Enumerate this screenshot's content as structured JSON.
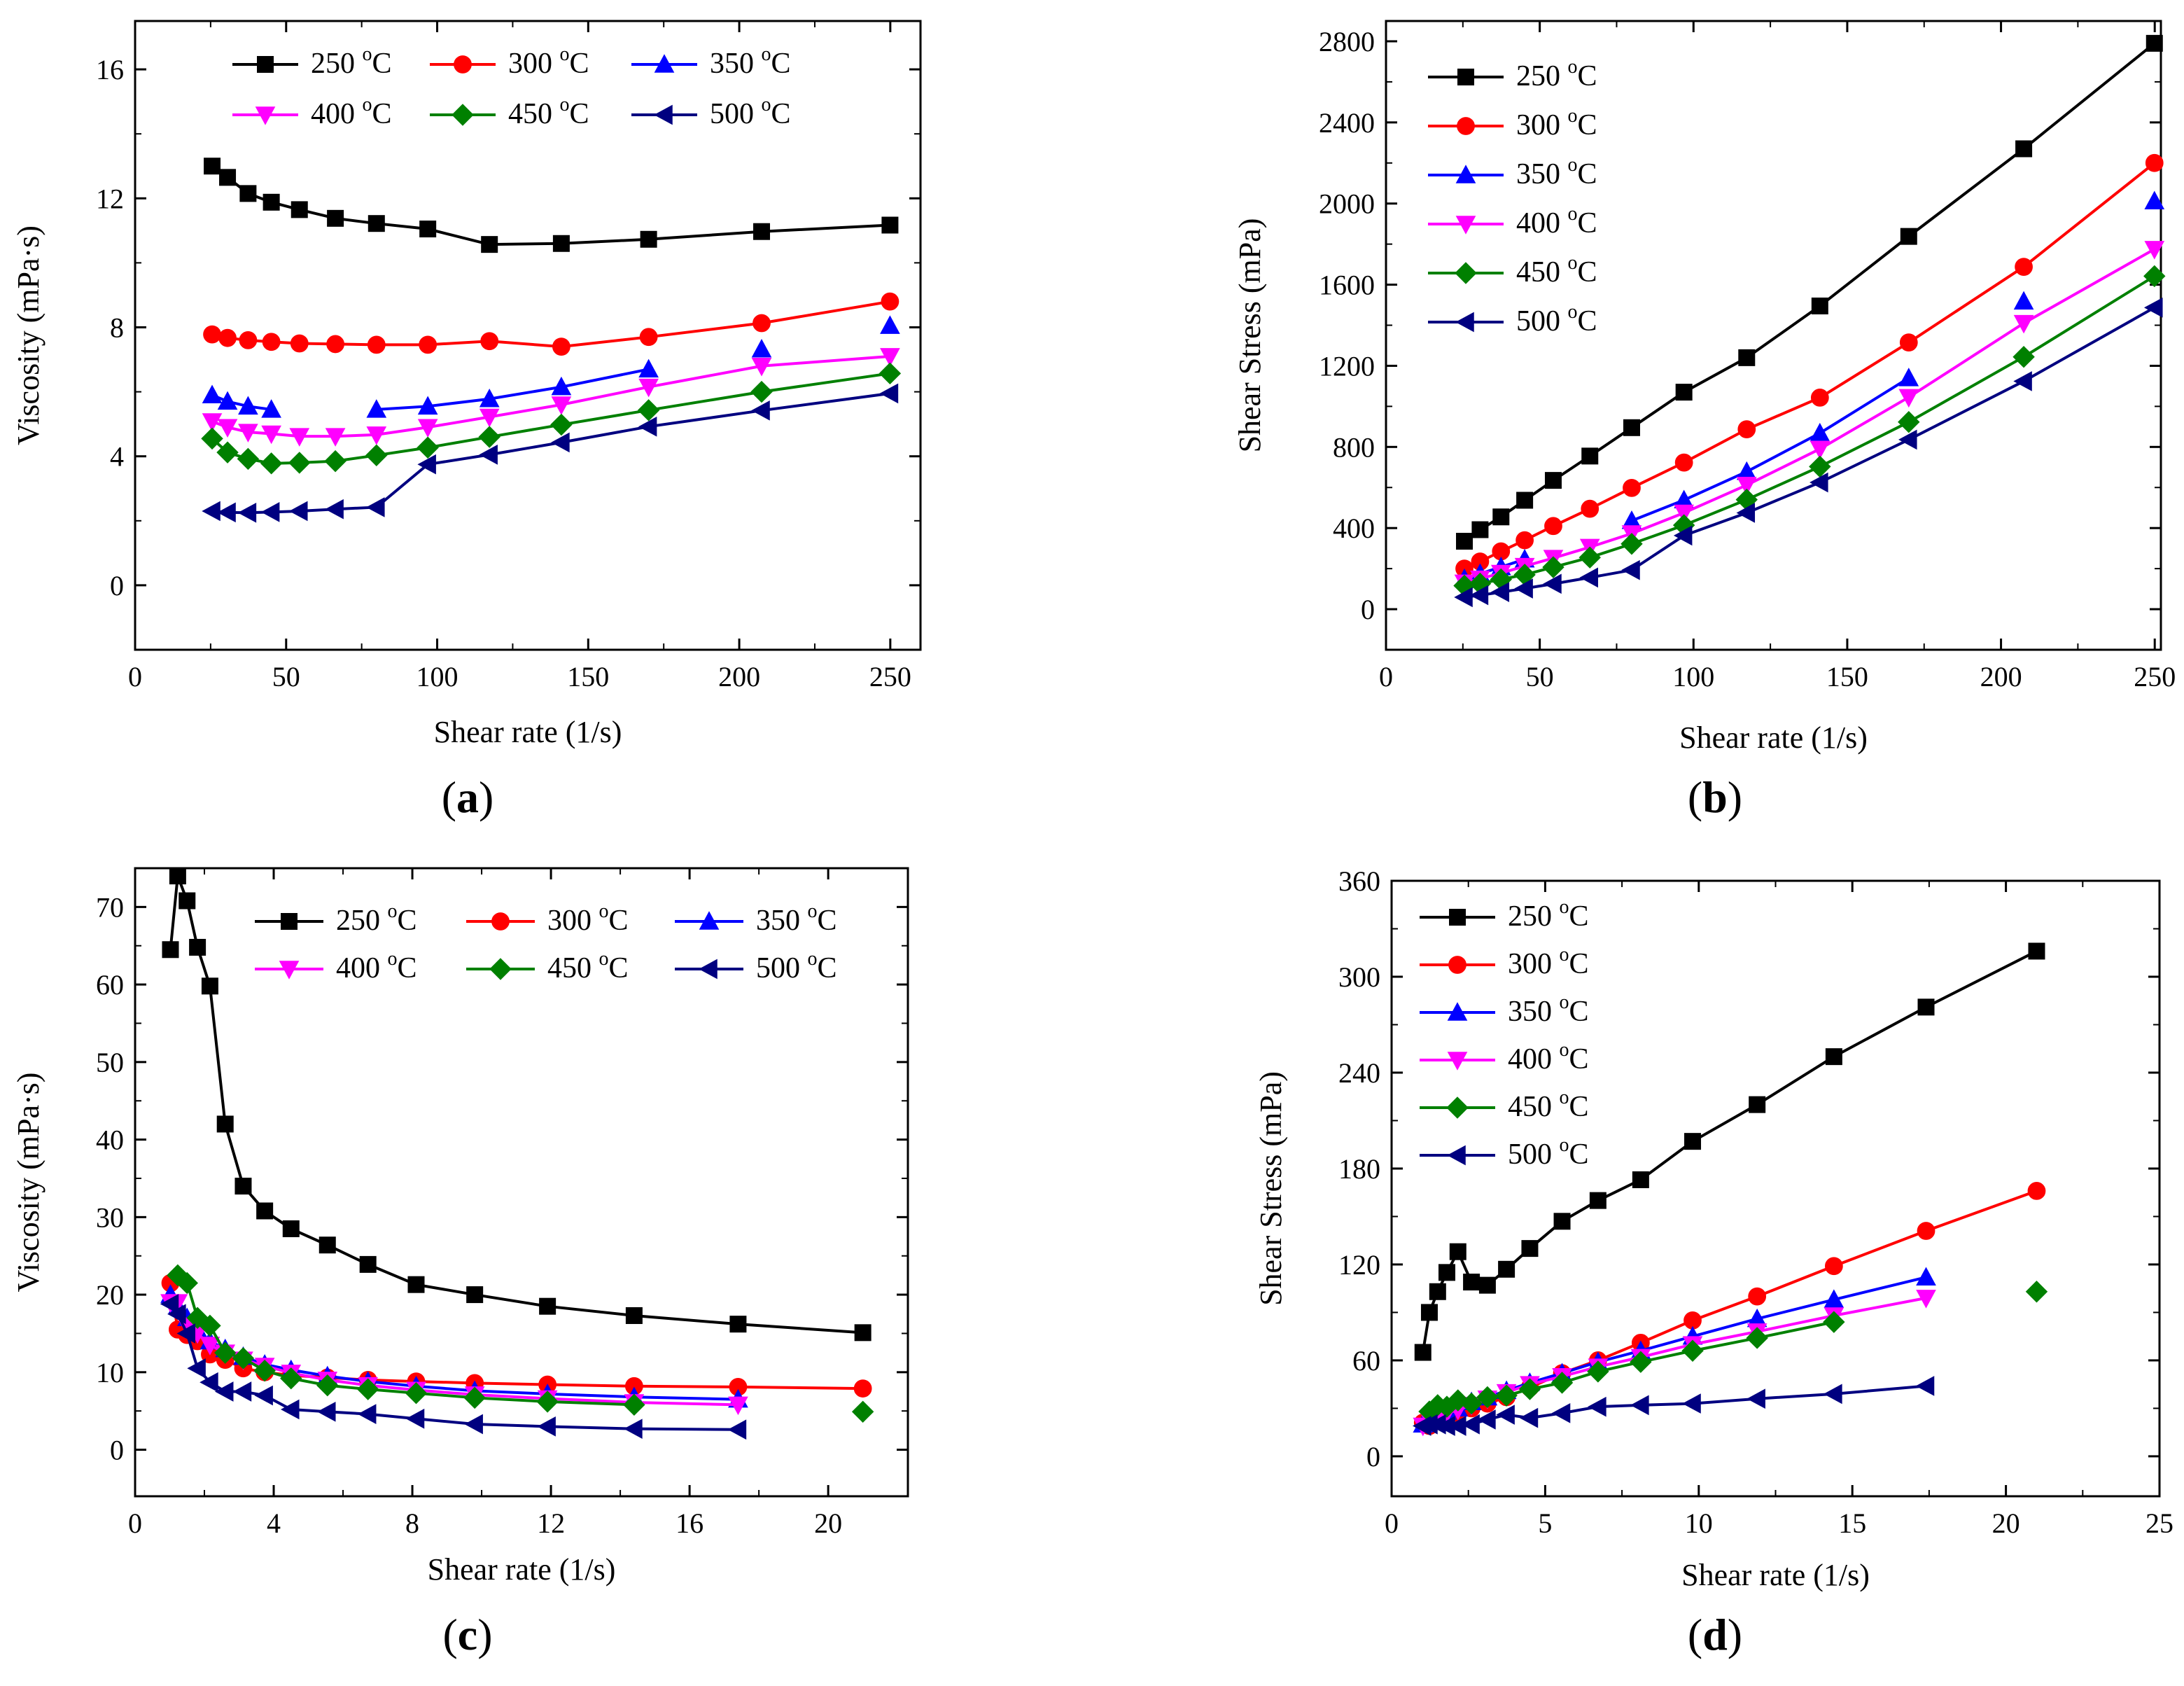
{
  "chart_data": [
    {
      "type": "line",
      "panel": "(a)",
      "panel_letter": "a",
      "xlabel": "Shear rate (1/s)",
      "ylabel": "Viscosity (mPa·s)",
      "xlim": [
        0,
        260
      ],
      "ylim": [
        -2,
        17.5
      ],
      "xticks": [
        0,
        50,
        100,
        150,
        200,
        250
      ],
      "yticks": [
        0,
        4,
        8,
        12,
        16
      ],
      "legend": {
        "columns": 3,
        "placement": "top"
      },
      "series": [
        {
          "name": "250 °C",
          "color": "#000000",
          "marker": "square",
          "x": [
            25.5,
            30.6,
            37.4,
            45.1,
            54.4,
            66.3,
            79.9,
            96.9,
            117.3,
            141.1,
            170.0,
            207.4,
            249.9
          ],
          "y": [
            13.0,
            12.65,
            12.15,
            11.88,
            11.65,
            11.38,
            11.22,
            11.05,
            10.57,
            10.6,
            10.73,
            10.97,
            11.17
          ]
        },
        {
          "name": "300 °C",
          "color": "#ff0000",
          "marker": "circle",
          "x": [
            25.5,
            30.6,
            37.4,
            45.1,
            54.4,
            66.3,
            79.9,
            96.9,
            117.3,
            141.1,
            170.0,
            207.4,
            249.9
          ],
          "y": [
            7.78,
            7.67,
            7.6,
            7.55,
            7.5,
            7.48,
            7.46,
            7.46,
            7.57,
            7.4,
            7.7,
            8.13,
            8.8
          ]
        },
        {
          "name": "350 °C",
          "color": "#0000ff",
          "marker": "triangle-up",
          "x": [
            25.5,
            30.6,
            37.4,
            45.1,
            79.9,
            96.9,
            117.3,
            141.1,
            170.0,
            207.4,
            249.9
          ],
          "y": [
            5.9,
            5.7,
            5.55,
            5.45,
            5.45,
            5.55,
            5.78,
            6.15,
            6.7,
            7.32,
            8.05
          ]
        },
        {
          "name": "400 °C",
          "color": "#ff00ff",
          "marker": "triangle-down",
          "x": [
            25.5,
            30.6,
            37.4,
            45.1,
            54.4,
            66.3,
            79.9,
            96.9,
            117.3,
            141.1,
            170.0,
            207.4,
            249.9
          ],
          "y": [
            5.08,
            4.9,
            4.75,
            4.7,
            4.62,
            4.62,
            4.67,
            4.9,
            5.22,
            5.6,
            6.15,
            6.8,
            7.1
          ]
        },
        {
          "name": "450 °C",
          "color": "#008000",
          "marker": "diamond",
          "x": [
            25.5,
            30.6,
            37.4,
            45.1,
            54.4,
            66.3,
            79.9,
            96.9,
            117.3,
            141.1,
            170.0,
            207.4,
            249.9
          ],
          "y": [
            4.55,
            4.12,
            3.92,
            3.78,
            3.8,
            3.85,
            4.03,
            4.27,
            4.6,
            4.98,
            5.43,
            6.0,
            6.57
          ]
        },
        {
          "name": "500 °C",
          "color": "#000080",
          "marker": "triangle-left",
          "x": [
            25.5,
            30.6,
            37.4,
            45.1,
            54.4,
            66.3,
            79.9,
            96.9,
            117.3,
            141.1,
            170.0,
            207.4,
            249.9
          ],
          "y": [
            2.3,
            2.26,
            2.25,
            2.27,
            2.3,
            2.36,
            2.42,
            3.75,
            4.05,
            4.43,
            4.92,
            5.42,
            5.95
          ]
        }
      ]
    },
    {
      "type": "line",
      "panel": "(b)",
      "panel_letter": "b",
      "xlabel": "Shear rate (1/s)",
      "ylabel": "Shear Stress (mPa)",
      "xlim": [
        0,
        252
      ],
      "ylim": [
        -200,
        2900
      ],
      "xticks": [
        0,
        50,
        100,
        150,
        200,
        250
      ],
      "yticks": [
        0,
        400,
        800,
        1200,
        1600,
        2000,
        2400,
        2800
      ],
      "legend": {
        "columns": 1,
        "placement": "top-left"
      },
      "series": [
        {
          "name": "250 °C",
          "color": "#000000",
          "marker": "square",
          "x": [
            25.5,
            30.6,
            37.4,
            45.1,
            54.4,
            66.3,
            79.9,
            96.9,
            117.3,
            141.1,
            170.0,
            207.4,
            249.9
          ],
          "y": [
            335,
            392,
            455,
            537,
            635,
            755,
            895,
            1070,
            1240,
            1495,
            1838,
            2270,
            2790
          ]
        },
        {
          "name": "300 °C",
          "color": "#ff0000",
          "marker": "circle",
          "x": [
            25.5,
            30.6,
            37.4,
            45.1,
            54.4,
            66.3,
            79.9,
            96.9,
            117.3,
            141.1,
            170.0,
            207.4,
            249.9
          ],
          "y": [
            200,
            235,
            285,
            340,
            410,
            495,
            598,
            723,
            887,
            1043,
            1315,
            1688,
            2200
          ]
        },
        {
          "name": "350 °C",
          "color": "#0000ff",
          "marker": "triangle-up",
          "x": [
            25.5,
            30.6,
            37.4,
            45.1,
            79.9,
            96.9,
            117.3,
            141.1,
            170.0,
            207.4,
            249.9
          ],
          "y": [
            150,
            175,
            208,
            246,
            436,
            538,
            678,
            868,
            1140,
            1518,
            2012
          ]
        },
        {
          "name": "400 °C",
          "color": "#ff00ff",
          "marker": "triangle-down",
          "x": [
            25.5,
            30.6,
            37.4,
            45.1,
            54.4,
            66.3,
            79.9,
            96.9,
            117.3,
            141.1,
            170.0,
            207.4,
            249.9
          ],
          "y": [
            130,
            150,
            178,
            212,
            252,
            306,
            373,
            475,
            612,
            790,
            1045,
            1410,
            1775
          ]
        },
        {
          "name": "450 °C",
          "color": "#008000",
          "marker": "diamond",
          "x": [
            25.5,
            30.6,
            37.4,
            45.1,
            54.4,
            66.3,
            79.9,
            96.9,
            117.3,
            141.1,
            170.0,
            207.4,
            249.9
          ],
          "y": [
            116,
            126,
            147,
            170,
            207,
            255,
            322,
            414,
            540,
            703,
            923,
            1244,
            1642
          ]
        },
        {
          "name": "500 °C",
          "color": "#000080",
          "marker": "triangle-left",
          "x": [
            25.5,
            30.6,
            37.4,
            45.1,
            54.4,
            66.3,
            79.9,
            96.9,
            117.3,
            141.1,
            170.0,
            207.4,
            249.9
          ],
          "y": [
            59,
            69,
            84,
            102,
            125,
            156,
            193,
            363,
            475,
            625,
            836,
            1124,
            1487
          ]
        }
      ]
    },
    {
      "type": "line",
      "panel": "(c)",
      "panel_letter": "c",
      "xlabel": "Shear rate (1/s)",
      "ylabel": "Viscosity (mPa·s)",
      "xlim": [
        0,
        22.3
      ],
      "ylim": [
        -6,
        75
      ],
      "xticks": [
        0,
        4,
        8,
        12,
        16,
        20
      ],
      "yticks": [
        0,
        10,
        20,
        30,
        40,
        50,
        60,
        70
      ],
      "legend": {
        "columns": 3,
        "placement": "top-right"
      },
      "series": [
        {
          "name": "250 °C",
          "color": "#000000",
          "marker": "square",
          "x": [
            1.02,
            1.23,
            1.5,
            1.8,
            2.16,
            2.6,
            3.12,
            3.74,
            4.5,
            5.55,
            6.72,
            8.11,
            9.8,
            11.9,
            14.4,
            17.4,
            21.0
          ],
          "y": [
            64.5,
            74.0,
            70.8,
            64.8,
            59.8,
            42.0,
            34.0,
            30.8,
            28.5,
            26.4,
            23.9,
            21.3,
            20.0,
            18.5,
            17.3,
            16.2,
            15.1
          ]
        },
        {
          "name": "300 °C",
          "color": "#ff0000",
          "marker": "circle",
          "x": [
            1.02,
            1.23,
            1.5,
            1.8,
            2.16,
            2.6,
            3.12,
            3.74,
            4.5,
            5.55,
            6.72,
            8.11,
            9.8,
            11.9,
            14.4,
            17.4,
            21.0
          ],
          "y": [
            21.5,
            15.5,
            14.8,
            14.0,
            12.3,
            11.6,
            10.5,
            10.0,
            9.6,
            9.3,
            9.0,
            8.8,
            8.6,
            8.4,
            8.2,
            8.1,
            7.9
          ]
        },
        {
          "name": "350 °C",
          "color": "#0000ff",
          "marker": "triangle-up",
          "x": [
            1.02,
            1.23,
            1.5,
            1.8,
            2.16,
            2.6,
            3.12,
            3.74,
            4.5,
            5.55,
            6.72,
            8.11,
            9.8,
            11.9,
            14.4,
            17.4
          ],
          "y": [
            20.0,
            18.5,
            17.0,
            15.5,
            14.0,
            13.0,
            12.0,
            11.0,
            10.3,
            9.5,
            8.8,
            8.2,
            7.6,
            7.2,
            6.8,
            6.5
          ]
        },
        {
          "name": "400 °C",
          "color": "#ff00ff",
          "marker": "triangle-down",
          "x": [
            1.02,
            1.23,
            1.5,
            1.8,
            2.16,
            2.6,
            3.12,
            3.74,
            4.5,
            5.55,
            6.72,
            8.11,
            9.8,
            11.9,
            14.4,
            17.4
          ],
          "y": [
            19.0,
            19.0,
            16.0,
            15.0,
            13.5,
            12.5,
            11.6,
            10.8,
            9.9,
            9.0,
            8.3,
            7.7,
            7.1,
            6.6,
            6.1,
            5.8
          ]
        },
        {
          "name": "450 °C",
          "color": "#008000",
          "marker": "diamond",
          "x": [
            1.23,
            1.5,
            1.8,
            2.16,
            2.6,
            3.12,
            3.74,
            4.5,
            5.55,
            6.72,
            8.11,
            9.8,
            11.9,
            14.4,
            21.0
          ],
          "y": [
            22.5,
            21.5,
            17.0,
            16.0,
            12.5,
            11.8,
            10.2,
            9.2,
            8.3,
            7.8,
            7.3,
            6.7,
            6.2,
            5.8,
            4.9
          ]
        },
        {
          "name": "500 °C",
          "color": "#000080",
          "marker": "triangle-left",
          "x": [
            1.02,
            1.23,
            1.5,
            1.8,
            2.16,
            2.6,
            3.12,
            3.74,
            4.5,
            5.55,
            6.72,
            8.11,
            9.8,
            11.9,
            14.4,
            17.4
          ],
          "y": [
            18.8,
            17.5,
            15.0,
            10.5,
            8.7,
            7.5,
            7.5,
            7.0,
            5.2,
            4.9,
            4.6,
            4.0,
            3.3,
            3.0,
            2.7,
            2.6
          ]
        }
      ]
    },
    {
      "type": "line",
      "panel": "(d)",
      "panel_letter": "d",
      "xlabel": "Shear rate (1/s)",
      "ylabel": "Shear Stress (mPa)",
      "xlim": [
        0,
        25
      ],
      "ylim": [
        -25,
        360
      ],
      "xticks": [
        0,
        5,
        10,
        15,
        20,
        25
      ],
      "yticks": [
        0,
        60,
        120,
        180,
        240,
        300,
        360
      ],
      "legend": {
        "columns": 1,
        "placement": "top-left"
      },
      "series": [
        {
          "name": "250 °C",
          "color": "#000000",
          "marker": "square",
          "x": [
            1.02,
            1.23,
            1.5,
            1.8,
            2.16,
            2.6,
            3.12,
            3.74,
            4.5,
            5.55,
            6.72,
            8.11,
            9.8,
            11.9,
            14.4,
            17.4,
            21.0
          ],
          "y": [
            65,
            90,
            103,
            115,
            128,
            109,
            107,
            117,
            130,
            147,
            160,
            173,
            197,
            220,
            250,
            281,
            316
          ]
        },
        {
          "name": "300 °C",
          "color": "#ff0000",
          "marker": "circle",
          "x": [
            1.02,
            1.23,
            1.5,
            1.8,
            2.16,
            2.6,
            3.12,
            3.74,
            4.5,
            5.55,
            6.72,
            8.11,
            9.8,
            11.9,
            14.4,
            17.4,
            21.0
          ],
          "y": [
            21,
            19,
            22,
            25,
            27,
            30,
            33,
            37,
            43,
            52,
            60,
            71,
            85,
            100,
            119,
            141,
            166
          ]
        },
        {
          "name": "350 °C",
          "color": "#0000ff",
          "marker": "triangle-up",
          "x": [
            1.02,
            1.23,
            1.5,
            1.8,
            2.16,
            2.6,
            3.12,
            3.74,
            4.5,
            5.55,
            6.72,
            8.11,
            9.8,
            11.9,
            14.4,
            17.4
          ],
          "y": [
            20,
            23,
            25,
            28,
            30,
            34,
            37,
            41,
            46,
            52,
            59,
            66,
            75,
            86,
            98,
            112
          ]
        },
        {
          "name": "400 °C",
          "color": "#ff00ff",
          "marker": "triangle-down",
          "x": [
            1.02,
            1.23,
            1.5,
            1.8,
            2.16,
            2.6,
            3.12,
            3.74,
            4.5,
            5.55,
            6.72,
            8.11,
            9.8,
            11.9,
            14.4,
            17.4
          ],
          "y": [
            19,
            23,
            24,
            27,
            29,
            32,
            36,
            40,
            45,
            50,
            56,
            62,
            70,
            78,
            88,
            99
          ]
        },
        {
          "name": "450 °C",
          "color": "#008000",
          "marker": "diamond",
          "x": [
            1.23,
            1.5,
            1.8,
            2.16,
            2.6,
            3.12,
            3.74,
            4.5,
            5.55,
            6.72,
            8.11,
            9.8,
            11.9,
            14.4,
            21.0
          ],
          "y": [
            28,
            32,
            31,
            35,
            33,
            37,
            38,
            42,
            46,
            53,
            59,
            66,
            74,
            84,
            103
          ]
        },
        {
          "name": "500 °C",
          "color": "#000080",
          "marker": "triangle-left",
          "x": [
            1.02,
            1.23,
            1.5,
            1.8,
            2.16,
            2.6,
            3.12,
            3.74,
            4.5,
            5.55,
            6.72,
            8.11,
            9.8,
            11.9,
            14.4,
            17.4
          ],
          "y": [
            19,
            20,
            20,
            19,
            19,
            20,
            23,
            26,
            24,
            27,
            31,
            32,
            33,
            36,
            39,
            44
          ]
        }
      ]
    }
  ]
}
